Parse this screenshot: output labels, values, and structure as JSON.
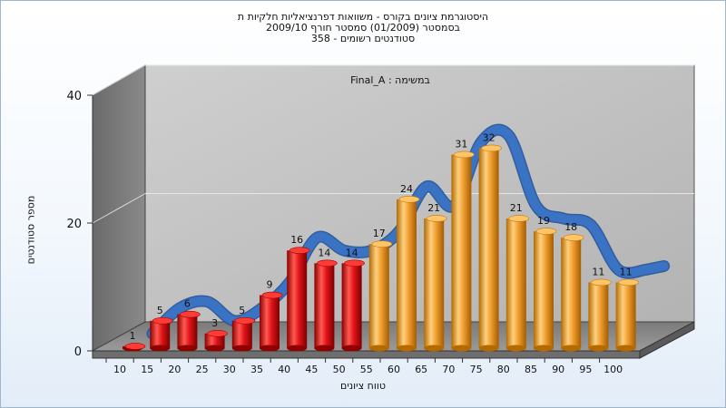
{
  "chart_data": {
    "type": "bar",
    "title_lines": [
      "היסטוגרמת ציונים בקורס - משוואות דפרנציאליות חלקיות ת",
      "בסמסטר  (01/2009)  סמסטר חורף 2009/10",
      "סטודנטים רשומים - 358"
    ],
    "subtitle": "Final_A : במשימה",
    "xlabel": "טווח ציונים",
    "ylabel": "מספר סטודנטים",
    "categories": [
      "10",
      "15",
      "20",
      "25",
      "30",
      "35",
      "40",
      "45",
      "50",
      "55",
      "60",
      "65",
      "70",
      "75",
      "80",
      "85",
      "90",
      "95",
      "100"
    ],
    "values": [
      1,
      5,
      6,
      3,
      5,
      9,
      16,
      14,
      14,
      17,
      24,
      21,
      31,
      32,
      21,
      19,
      18,
      11,
      11
    ],
    "y_ticks": [
      0,
      20,
      40
    ],
    "ylim": [
      0,
      40
    ],
    "bar_colors": {
      "below_threshold": "#e2141a",
      "above_threshold": "#f0a030"
    },
    "color_threshold_category": "55",
    "trend_line_color": "#3a72c4",
    "grid": true
  }
}
